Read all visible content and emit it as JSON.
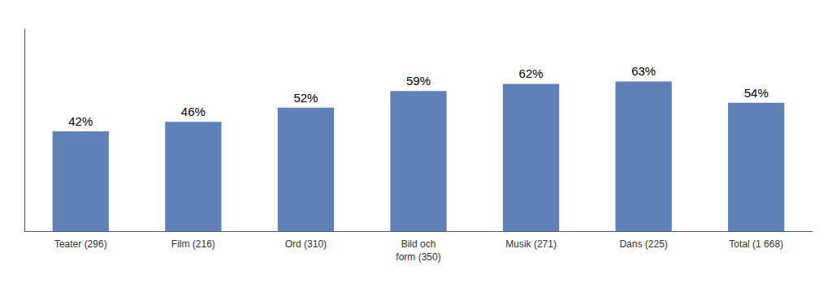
{
  "chart_data": {
    "type": "bar",
    "categories": [
      "Teater (296)",
      "Film (216)",
      "Ord (310)",
      "Bild och\nform (350)",
      "Musik (271)",
      "Dans (225)",
      "Total (1 668)"
    ],
    "values": [
      42,
      46,
      52,
      59,
      62,
      63,
      54
    ],
    "value_labels": [
      "42%",
      "46%",
      "52%",
      "59%",
      "62%",
      "63%",
      "54%"
    ],
    "data_labels": true,
    "color": "#6080b8",
    "ylim": [
      0,
      85
    ],
    "tick_labels": "x",
    "grid": false
  }
}
